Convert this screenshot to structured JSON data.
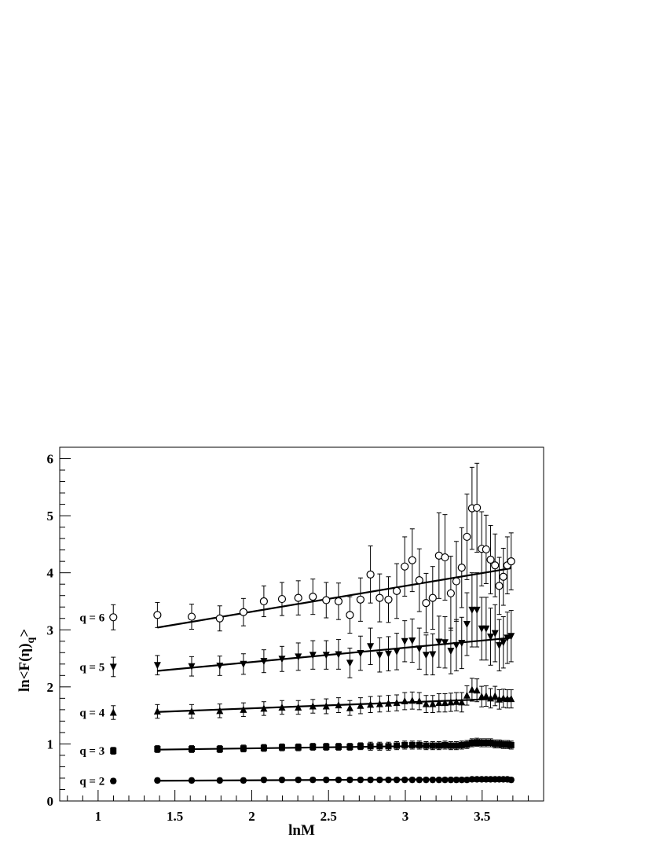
{
  "chart_data": {
    "type": "scatter",
    "xlabel": "lnM",
    "ylabel": "ln<F(η)",
    "ylabel_sub": "q",
    "ylabel_close": ">",
    "xlim": [
      0.75,
      3.9
    ],
    "ylim": [
      0,
      6.2
    ],
    "xticks": [
      1,
      1.5,
      2,
      2.5,
      3,
      3.5
    ],
    "xtick_labels": [
      "1",
      "1.5",
      "2",
      "2.5",
      "3",
      "3.5"
    ],
    "yticks": [
      0,
      1,
      2,
      3,
      4,
      5,
      6
    ],
    "ytick_labels": [
      "0",
      "1",
      "2",
      "3",
      "4",
      "5",
      "6"
    ],
    "x": [
      1.099,
      1.386,
      1.609,
      1.792,
      1.946,
      2.079,
      2.197,
      2.303,
      2.398,
      2.485,
      2.565,
      2.639,
      2.708,
      2.773,
      2.833,
      2.89,
      2.944,
      2.996,
      3.045,
      3.091,
      3.135,
      3.178,
      3.219,
      3.258,
      3.296,
      3.332,
      3.367,
      3.401,
      3.434,
      3.466,
      3.497,
      3.526,
      3.555,
      3.584,
      3.611,
      3.638,
      3.664,
      3.689
    ],
    "series": [
      {
        "name": "q = 2",
        "marker": "circle-filled",
        "y": [
          0.35,
          0.36,
          0.36,
          0.36,
          0.36,
          0.37,
          0.37,
          0.37,
          0.37,
          0.37,
          0.37,
          0.37,
          0.37,
          0.37,
          0.37,
          0.37,
          0.37,
          0.37,
          0.37,
          0.37,
          0.37,
          0.37,
          0.37,
          0.37,
          0.37,
          0.37,
          0.37,
          0.37,
          0.38,
          0.38,
          0.38,
          0.38,
          0.38,
          0.38,
          0.38,
          0.38,
          0.38,
          0.37
        ],
        "yerr": [
          0.04,
          0.04,
          0.04,
          0.04,
          0.04,
          0.04,
          0.04,
          0.04,
          0.04,
          0.04,
          0.04,
          0.04,
          0.04,
          0.04,
          0.04,
          0.04,
          0.04,
          0.04,
          0.04,
          0.04,
          0.04,
          0.04,
          0.04,
          0.04,
          0.04,
          0.04,
          0.04,
          0.04,
          0.04,
          0.04,
          0.04,
          0.04,
          0.04,
          0.04,
          0.04,
          0.04,
          0.04,
          0.04
        ],
        "fit": [
          [
            1.386,
            0.355
          ],
          [
            3.689,
            0.385
          ]
        ]
      },
      {
        "name": "q = 3",
        "marker": "square-filled",
        "y": [
          0.88,
          0.91,
          0.91,
          0.91,
          0.92,
          0.93,
          0.94,
          0.94,
          0.95,
          0.95,
          0.95,
          0.95,
          0.96,
          0.96,
          0.96,
          0.96,
          0.97,
          0.98,
          0.98,
          0.98,
          0.97,
          0.97,
          0.97,
          0.98,
          0.97,
          0.97,
          0.98,
          0.99,
          1.02,
          1.03,
          1.02,
          1.02,
          1.02,
          1.0,
          1.0,
          0.99,
          0.99,
          0.98
        ],
        "yerr": [
          0.06,
          0.06,
          0.06,
          0.06,
          0.06,
          0.06,
          0.06,
          0.06,
          0.06,
          0.06,
          0.06,
          0.06,
          0.06,
          0.07,
          0.07,
          0.07,
          0.07,
          0.07,
          0.07,
          0.07,
          0.07,
          0.07,
          0.07,
          0.07,
          0.07,
          0.07,
          0.07,
          0.07,
          0.07,
          0.07,
          0.07,
          0.07,
          0.07,
          0.07,
          0.07,
          0.07,
          0.07,
          0.07
        ],
        "fit": [
          [
            1.386,
            0.9
          ],
          [
            3.689,
            0.985
          ]
        ]
      },
      {
        "name": "q = 4",
        "marker": "triangle-up-filled",
        "y": [
          1.55,
          1.57,
          1.57,
          1.58,
          1.6,
          1.62,
          1.64,
          1.64,
          1.66,
          1.66,
          1.68,
          1.63,
          1.67,
          1.69,
          1.7,
          1.71,
          1.72,
          1.75,
          1.76,
          1.75,
          1.7,
          1.7,
          1.72,
          1.72,
          1.73,
          1.74,
          1.73,
          1.85,
          1.95,
          1.94,
          1.83,
          1.84,
          1.8,
          1.84,
          1.78,
          1.8,
          1.79,
          1.79
        ],
        "yerr": [
          0.12,
          0.12,
          0.12,
          0.12,
          0.12,
          0.12,
          0.12,
          0.12,
          0.12,
          0.13,
          0.13,
          0.13,
          0.14,
          0.14,
          0.14,
          0.14,
          0.14,
          0.15,
          0.15,
          0.15,
          0.15,
          0.15,
          0.16,
          0.16,
          0.16,
          0.16,
          0.17,
          0.17,
          0.2,
          0.2,
          0.18,
          0.18,
          0.17,
          0.17,
          0.17,
          0.16,
          0.16,
          0.16
        ],
        "fit": [
          [
            1.386,
            1.56
          ],
          [
            3.689,
            1.8
          ]
        ]
      },
      {
        "name": "q = 5",
        "marker": "triangle-down-filled",
        "y": [
          2.35,
          2.38,
          2.36,
          2.37,
          2.4,
          2.45,
          2.49,
          2.53,
          2.56,
          2.56,
          2.57,
          2.42,
          2.59,
          2.71,
          2.56,
          2.58,
          2.62,
          2.8,
          2.81,
          2.67,
          2.56,
          2.57,
          2.79,
          2.78,
          2.63,
          2.73,
          2.77,
          3.1,
          3.35,
          3.35,
          3.02,
          3.02,
          2.88,
          2.94,
          2.73,
          2.78,
          2.86,
          2.89
        ],
        "yerr": [
          0.17,
          0.17,
          0.17,
          0.17,
          0.18,
          0.2,
          0.22,
          0.24,
          0.25,
          0.25,
          0.26,
          0.26,
          0.3,
          0.32,
          0.3,
          0.3,
          0.32,
          0.36,
          0.38,
          0.36,
          0.35,
          0.36,
          0.45,
          0.45,
          0.4,
          0.45,
          0.45,
          0.55,
          0.65,
          0.65,
          0.55,
          0.55,
          0.5,
          0.5,
          0.45,
          0.45,
          0.45,
          0.45
        ],
        "fit": [
          [
            1.386,
            2.28
          ],
          [
            3.689,
            2.86
          ]
        ]
      },
      {
        "name": "q = 6",
        "marker": "circle-open",
        "y": [
          3.22,
          3.26,
          3.23,
          3.2,
          3.31,
          3.5,
          3.54,
          3.56,
          3.58,
          3.52,
          3.5,
          3.26,
          3.53,
          3.97,
          3.56,
          3.53,
          3.68,
          4.11,
          4.22,
          3.87,
          3.47,
          3.56,
          4.3,
          4.27,
          3.64,
          3.85,
          4.09,
          4.63,
          5.13,
          5.14,
          4.42,
          4.41,
          4.23,
          4.13,
          3.77,
          3.93,
          4.13,
          4.2
        ],
        "yerr": [
          0.22,
          0.22,
          0.22,
          0.22,
          0.24,
          0.27,
          0.29,
          0.3,
          0.31,
          0.31,
          0.32,
          0.32,
          0.38,
          0.5,
          0.42,
          0.4,
          0.48,
          0.52,
          0.55,
          0.55,
          0.52,
          0.55,
          0.75,
          0.75,
          0.65,
          0.7,
          0.7,
          0.75,
          0.72,
          0.78,
          0.65,
          0.6,
          0.6,
          0.55,
          0.5,
          0.5,
          0.5,
          0.5
        ],
        "fit": [
          [
            1.386,
            3.04
          ],
          [
            3.689,
            4.08
          ]
        ]
      }
    ]
  }
}
